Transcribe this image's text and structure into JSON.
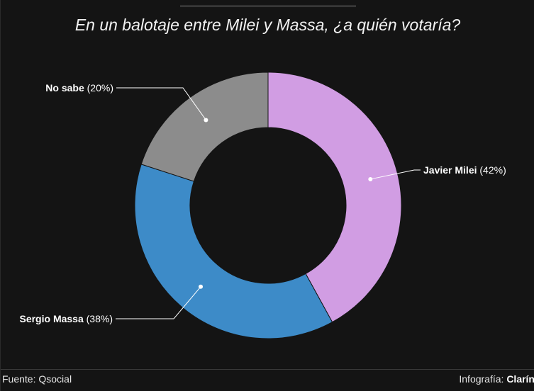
{
  "title": "En un balotaje entre Milei y Massa, ¿a quién votaría?",
  "footer": {
    "source": "Fuente: Qsocial",
    "credit_prefix": "Infografía: ",
    "credit_brand": "Clarín"
  },
  "chart_data": {
    "type": "pie",
    "donut": true,
    "title": "En un balotaje entre Milei y Massa, ¿a quién votaría?",
    "slices": [
      {
        "name": "Javier Milei",
        "value": 42,
        "label": "(42%)",
        "color": "#d19de3"
      },
      {
        "name": "Sergio Massa",
        "value": 38,
        "label": "(38%)",
        "color": "#3d8bc8"
      },
      {
        "name": "No sabe",
        "value": 20,
        "label": "(20%)",
        "color": "#8c8c8c"
      }
    ]
  }
}
